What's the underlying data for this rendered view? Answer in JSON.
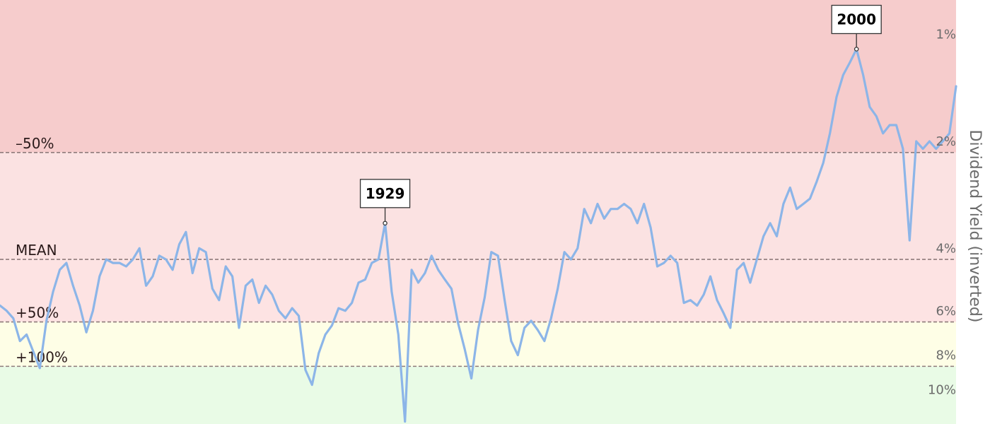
{
  "chart_data": {
    "type": "line",
    "ylabel": "Dividend Yield (inverted)",
    "y_scale": "log-inverted",
    "ylim": [
      12.5,
      0.8
    ],
    "y_ticks": [
      {
        "value": 1,
        "label": "1%"
      },
      {
        "value": 2,
        "label": "2%"
      },
      {
        "value": 4,
        "label": "4%"
      },
      {
        "value": 6,
        "label": "6%"
      },
      {
        "value": 8,
        "label": "8%"
      },
      {
        "value": 10,
        "label": "10%"
      }
    ],
    "bands": [
      {
        "label": "–50%",
        "line_value": 2.15,
        "color": "#f6cccc"
      },
      {
        "label": "MEAN",
        "line_value": 4.3,
        "color": "#fbe2e2"
      },
      {
        "label": "+50%",
        "line_value": 6.45,
        "color": "#fde3e3"
      },
      {
        "label": "+100%",
        "line_value": 8.6,
        "color": "#fefee6"
      },
      {
        "label": "",
        "line_value": null,
        "color": "#e9fbe6"
      }
    ],
    "xlim": [
      1871,
      2015
    ],
    "series": [
      {
        "color": "#8cb5e8",
        "x": [
          1871,
          1872,
          1873,
          1874,
          1875,
          1876,
          1877,
          1878,
          1879,
          1880,
          1881,
          1882,
          1883,
          1884,
          1885,
          1886,
          1887,
          1888,
          1889,
          1890,
          1891,
          1892,
          1893,
          1894,
          1895,
          1896,
          1897,
          1898,
          1899,
          1900,
          1901,
          1902,
          1903,
          1904,
          1905,
          1906,
          1907,
          1908,
          1909,
          1910,
          1911,
          1912,
          1913,
          1914,
          1915,
          1916,
          1917,
          1918,
          1919,
          1920,
          1921,
          1922,
          1923,
          1924,
          1925,
          1926,
          1927,
          1928,
          1929,
          1930,
          1931,
          1932,
          1933,
          1934,
          1935,
          1936,
          1937,
          1938,
          1939,
          1940,
          1941,
          1942,
          1943,
          1944,
          1945,
          1946,
          1947,
          1948,
          1949,
          1950,
          1951,
          1952,
          1953,
          1954,
          1955,
          1956,
          1957,
          1958,
          1959,
          1960,
          1961,
          1962,
          1963,
          1964,
          1965,
          1966,
          1967,
          1968,
          1969,
          1970,
          1971,
          1972,
          1973,
          1974,
          1975,
          1976,
          1977,
          1978,
          1979,
          1980,
          1981,
          1982,
          1983,
          1984,
          1985,
          1986,
          1987,
          1988,
          1989,
          1990,
          1991,
          1992,
          1993,
          1994,
          1995,
          1996,
          1997,
          1998,
          1999,
          2000,
          2001,
          2002,
          2003,
          2004,
          2005,
          2006,
          2007,
          2008,
          2009,
          2010,
          2011,
          2012,
          2013,
          2014,
          2015
        ],
        "y": [
          5.8,
          6.0,
          6.3,
          7.3,
          7.0,
          7.8,
          8.7,
          6.4,
          5.3,
          4.6,
          4.4,
          5.1,
          5.8,
          6.9,
          6.0,
          4.8,
          4.3,
          4.4,
          4.4,
          4.5,
          4.3,
          4.0,
          5.1,
          4.8,
          4.2,
          4.3,
          4.6,
          3.9,
          3.6,
          4.7,
          4.0,
          4.1,
          5.2,
          5.6,
          4.5,
          4.8,
          6.7,
          5.1,
          4.9,
          5.7,
          5.1,
          5.4,
          6.0,
          6.3,
          5.9,
          6.2,
          8.8,
          9.7,
          7.9,
          7.0,
          6.6,
          5.9,
          6.0,
          5.7,
          5.0,
          4.9,
          4.4,
          4.3,
          3.4,
          5.3,
          7.0,
          12.3,
          4.6,
          5.0,
          4.7,
          4.2,
          4.6,
          4.9,
          5.2,
          6.5,
          7.7,
          9.3,
          6.8,
          5.5,
          4.1,
          4.2,
          5.6,
          7.3,
          8.0,
          6.7,
          6.4,
          6.8,
          7.3,
          6.3,
          5.2,
          4.1,
          4.3,
          4.0,
          3.1,
          3.4,
          3.0,
          3.3,
          3.1,
          3.1,
          3.0,
          3.1,
          3.4,
          3.0,
          3.5,
          4.5,
          4.4,
          4.2,
          4.4,
          5.7,
          5.6,
          5.8,
          5.4,
          4.8,
          5.6,
          6.1,
          6.7,
          4.6,
          4.4,
          5.0,
          4.3,
          3.7,
          3.4,
          3.7,
          3.0,
          2.7,
          3.1,
          3.0,
          2.9,
          2.6,
          2.3,
          1.9,
          1.5,
          1.3,
          1.2,
          1.1,
          1.3,
          1.6,
          1.7,
          1.9,
          1.8,
          1.8,
          2.1,
          3.8,
          2.0,
          2.1,
          2.0,
          2.1,
          2.0,
          1.9,
          1.4
        ]
      }
    ],
    "annotations": [
      {
        "label": "1929",
        "x": 1929,
        "y": 3.4
      },
      {
        "label": "2000",
        "x": 2000,
        "y": 1.1
      }
    ]
  }
}
